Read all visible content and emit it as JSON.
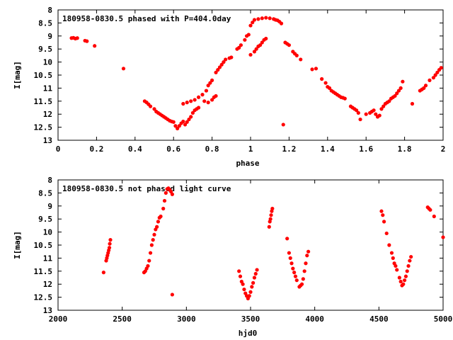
{
  "chart_data": [
    {
      "type": "scatter",
      "title": "180958-0830.5 phased with P=404.0day",
      "xlabel": "phase",
      "ylabel": "I[mag]",
      "xlim": [
        0,
        2
      ],
      "ylim": [
        8,
        13
      ],
      "y_inverted": true,
      "grid": false,
      "color": "#ff0000",
      "x_ticks": [
        "0",
        "0.2",
        "0.4",
        "0.6",
        "0.8",
        "1",
        "1.2",
        "1.4",
        "1.6",
        "1.8",
        "2"
      ],
      "y_ticks": [
        "8",
        "8.5",
        "9",
        "9.5",
        "10",
        "10.5",
        "11",
        "11.5",
        "12",
        "12.5",
        "13"
      ],
      "series": [
        {
          "points": [
            [
              0.07,
              9.08
            ],
            [
              0.08,
              9.07
            ],
            [
              0.09,
              9.1
            ],
            [
              0.1,
              9.08
            ],
            [
              0.14,
              9.18
            ],
            [
              0.15,
              9.2
            ],
            [
              0.19,
              9.38
            ],
            [
              0.34,
              10.25
            ],
            [
              0.45,
              11.5
            ],
            [
              0.46,
              11.55
            ],
            [
              0.47,
              11.62
            ],
            [
              0.48,
              11.7
            ],
            [
              0.5,
              11.8
            ],
            [
              0.51,
              11.9
            ],
            [
              0.52,
              11.95
            ],
            [
              0.53,
              12.0
            ],
            [
              0.54,
              12.05
            ],
            [
              0.55,
              12.1
            ],
            [
              0.56,
              12.15
            ],
            [
              0.57,
              12.2
            ],
            [
              0.58,
              12.25
            ],
            [
              0.59,
              12.28
            ],
            [
              0.6,
              12.3
            ],
            [
              0.61,
              12.45
            ],
            [
              0.62,
              12.55
            ],
            [
              0.63,
              12.45
            ],
            [
              0.64,
              12.35
            ],
            [
              0.65,
              12.28
            ],
            [
              0.66,
              12.4
            ],
            [
              0.67,
              12.3
            ],
            [
              0.68,
              12.2
            ],
            [
              0.69,
              12.1
            ],
            [
              0.7,
              11.95
            ],
            [
              0.71,
              11.85
            ],
            [
              0.72,
              11.8
            ],
            [
              0.73,
              11.75
            ],
            [
              0.65,
              11.6
            ],
            [
              0.67,
              11.55
            ],
            [
              0.69,
              11.5
            ],
            [
              0.71,
              11.45
            ],
            [
              0.73,
              11.35
            ],
            [
              0.75,
              11.25
            ],
            [
              0.77,
              11.1
            ],
            [
              0.76,
              11.5
            ],
            [
              0.78,
              11.55
            ],
            [
              0.8,
              11.45
            ],
            [
              0.81,
              11.35
            ],
            [
              0.82,
              11.3
            ],
            [
              0.78,
              10.9
            ],
            [
              0.79,
              10.8
            ],
            [
              0.8,
              10.7
            ],
            [
              0.82,
              10.4
            ],
            [
              0.83,
              10.3
            ],
            [
              0.84,
              10.2
            ],
            [
              0.85,
              10.1
            ],
            [
              0.86,
              10.0
            ],
            [
              0.87,
              9.9
            ],
            [
              0.89,
              9.85
            ],
            [
              0.9,
              9.82
            ],
            [
              0.93,
              9.5
            ],
            [
              0.94,
              9.45
            ],
            [
              0.95,
              9.35
            ],
            [
              0.97,
              9.15
            ],
            [
              0.98,
              9.0
            ],
            [
              0.99,
              8.95
            ],
            [
              1.0,
              9.72
            ],
            [
              1.02,
              9.6
            ],
            [
              1.03,
              9.5
            ],
            [
              1.04,
              9.4
            ],
            [
              1.05,
              9.35
            ],
            [
              1.06,
              9.25
            ],
            [
              1.07,
              9.15
            ],
            [
              1.08,
              9.1
            ],
            [
              1.0,
              8.6
            ],
            [
              1.01,
              8.48
            ],
            [
              1.02,
              8.38
            ],
            [
              1.04,
              8.35
            ],
            [
              1.06,
              8.32
            ],
            [
              1.08,
              8.3
            ],
            [
              1.1,
              8.32
            ],
            [
              1.12,
              8.35
            ],
            [
              1.13,
              8.38
            ],
            [
              1.14,
              8.4
            ],
            [
              1.15,
              8.45
            ],
            [
              1.16,
              8.52
            ],
            [
              1.18,
              9.25
            ],
            [
              1.19,
              9.3
            ],
            [
              1.2,
              9.35
            ],
            [
              1.22,
              9.6
            ],
            [
              1.23,
              9.68
            ],
            [
              1.24,
              9.75
            ],
            [
              1.26,
              9.9
            ],
            [
              1.17,
              12.4
            ],
            [
              1.32,
              10.28
            ],
            [
              1.34,
              10.25
            ],
            [
              1.37,
              10.65
            ],
            [
              1.39,
              10.8
            ],
            [
              1.4,
              10.95
            ],
            [
              1.41,
              11.0
            ],
            [
              1.42,
              11.1
            ],
            [
              1.43,
              11.15
            ],
            [
              1.44,
              11.2
            ],
            [
              1.45,
              11.25
            ],
            [
              1.46,
              11.3
            ],
            [
              1.47,
              11.35
            ],
            [
              1.48,
              11.37
            ],
            [
              1.49,
              11.4
            ],
            [
              1.52,
              11.7
            ],
            [
              1.53,
              11.75
            ],
            [
              1.54,
              11.8
            ],
            [
              1.55,
              11.85
            ],
            [
              1.56,
              11.95
            ],
            [
              1.57,
              12.2
            ],
            [
              1.6,
              12.0
            ],
            [
              1.62,
              11.95
            ],
            [
              1.63,
              11.9
            ],
            [
              1.64,
              11.85
            ],
            [
              1.65,
              12.0
            ],
            [
              1.66,
              12.1
            ],
            [
              1.67,
              12.05
            ],
            [
              1.68,
              11.8
            ],
            [
              1.69,
              11.7
            ],
            [
              1.7,
              11.6
            ],
            [
              1.71,
              11.55
            ],
            [
              1.72,
              11.5
            ],
            [
              1.73,
              11.4
            ],
            [
              1.74,
              11.35
            ],
            [
              1.75,
              11.3
            ],
            [
              1.76,
              11.2
            ],
            [
              1.77,
              11.1
            ],
            [
              1.78,
              11.0
            ],
            [
              1.79,
              10.75
            ],
            [
              1.84,
              11.6
            ],
            [
              1.88,
              11.1
            ],
            [
              1.89,
              11.05
            ],
            [
              1.9,
              11.0
            ],
            [
              1.91,
              10.9
            ],
            [
              1.93,
              10.7
            ],
            [
              1.95,
              10.6
            ],
            [
              1.96,
              10.5
            ],
            [
              1.97,
              10.4
            ],
            [
              1.98,
              10.3
            ],
            [
              1.99,
              10.22
            ]
          ]
        }
      ]
    },
    {
      "type": "scatter",
      "title": "180958-0830.5 not phased light curve",
      "xlabel": "hjd0",
      "ylabel": "I[mag]",
      "xlim": [
        2000,
        5000
      ],
      "ylim": [
        8,
        13
      ],
      "y_inverted": true,
      "grid": false,
      "color": "#ff0000",
      "x_ticks": [
        "2000",
        "2500",
        "3000",
        "3500",
        "4000",
        "4500",
        "5000"
      ],
      "y_ticks": [
        "8",
        "8.5",
        "9",
        "9.5",
        "10",
        "10.5",
        "11",
        "11.5",
        "12",
        "12.5",
        "13"
      ],
      "series": [
        {
          "points": [
            [
              2355,
              11.55
            ],
            [
              2375,
              11.1
            ],
            [
              2380,
              11.0
            ],
            [
              2385,
              10.9
            ],
            [
              2390,
              10.8
            ],
            [
              2395,
              10.7
            ],
            [
              2400,
              10.6
            ],
            [
              2403,
              10.45
            ],
            [
              2408,
              10.3
            ],
            [
              2670,
              11.55
            ],
            [
              2680,
              11.5
            ],
            [
              2690,
              11.4
            ],
            [
              2700,
              11.3
            ],
            [
              2710,
              11.1
            ],
            [
              2720,
              10.8
            ],
            [
              2730,
              10.5
            ],
            [
              2740,
              10.3
            ],
            [
              2750,
              10.1
            ],
            [
              2760,
              9.9
            ],
            [
              2770,
              9.8
            ],
            [
              2780,
              9.6
            ],
            [
              2790,
              9.45
            ],
            [
              2800,
              9.4
            ],
            [
              2820,
              9.1
            ],
            [
              2830,
              8.8
            ],
            [
              2840,
              8.5
            ],
            [
              2850,
              8.35
            ],
            [
              2860,
              8.32
            ],
            [
              2870,
              8.38
            ],
            [
              2880,
              8.45
            ],
            [
              2890,
              8.55
            ],
            [
              2890,
              12.4
            ],
            [
              3410,
              11.5
            ],
            [
              3420,
              11.7
            ],
            [
              3430,
              11.9
            ],
            [
              3440,
              12.0
            ],
            [
              3450,
              12.2
            ],
            [
              3460,
              12.35
            ],
            [
              3470,
              12.45
            ],
            [
              3480,
              12.55
            ],
            [
              3490,
              12.45
            ],
            [
              3500,
              12.3
            ],
            [
              3510,
              12.1
            ],
            [
              3520,
              11.95
            ],
            [
              3530,
              11.75
            ],
            [
              3540,
              11.6
            ],
            [
              3550,
              11.45
            ],
            [
              3645,
              9.8
            ],
            [
              3650,
              9.6
            ],
            [
              3655,
              9.5
            ],
            [
              3660,
              9.35
            ],
            [
              3665,
              9.2
            ],
            [
              3670,
              9.1
            ],
            [
              3785,
              10.25
            ],
            [
              3800,
              10.8
            ],
            [
              3810,
              11.0
            ],
            [
              3820,
              11.2
            ],
            [
              3830,
              11.4
            ],
            [
              3840,
              11.55
            ],
            [
              3850,
              11.7
            ],
            [
              3860,
              11.85
            ],
            [
              3880,
              12.1
            ],
            [
              3890,
              12.05
            ],
            [
              3900,
              12.0
            ],
            [
              3910,
              11.8
            ],
            [
              3920,
              11.5
            ],
            [
              3930,
              11.2
            ],
            [
              3940,
              10.9
            ],
            [
              3950,
              10.75
            ],
            [
              4520,
              9.2
            ],
            [
              4530,
              9.35
            ],
            [
              4540,
              9.6
            ],
            [
              4560,
              10.05
            ],
            [
              4580,
              10.5
            ],
            [
              4600,
              10.8
            ],
            [
              4610,
              11.0
            ],
            [
              4620,
              11.2
            ],
            [
              4630,
              11.3
            ],
            [
              4640,
              11.45
            ],
            [
              4660,
              11.75
            ],
            [
              4670,
              11.9
            ],
            [
              4680,
              12.05
            ],
            [
              4690,
              12.0
            ],
            [
              4700,
              11.85
            ],
            [
              4710,
              11.7
            ],
            [
              4720,
              11.5
            ],
            [
              4730,
              11.3
            ],
            [
              4740,
              11.1
            ],
            [
              4750,
              10.95
            ],
            [
              4880,
              9.05
            ],
            [
              4890,
              9.1
            ],
            [
              4900,
              9.15
            ],
            [
              4930,
              9.4
            ],
            [
              5000,
              10.2
            ]
          ]
        }
      ]
    }
  ]
}
